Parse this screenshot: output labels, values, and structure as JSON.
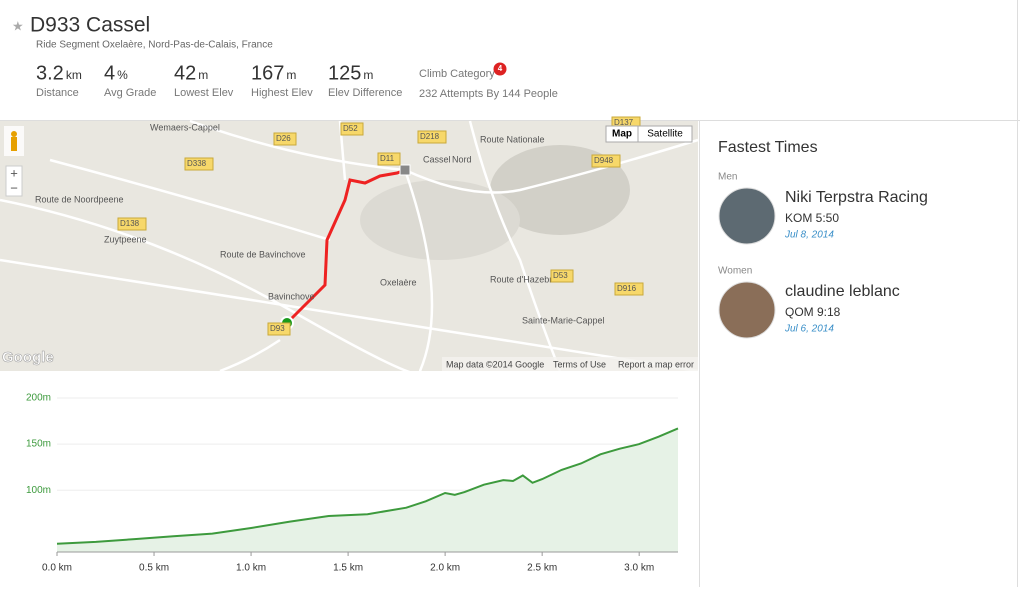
{
  "header": {
    "title": "D933 Cassel",
    "subtitle": "Ride Segment Oxelaère, Nord-Pas-de-Calais, France",
    "stats": [
      {
        "value": "3.2",
        "unit": "km",
        "label": "Distance"
      },
      {
        "value": "4",
        "unit": "%",
        "label": "Avg Grade"
      },
      {
        "value": "42",
        "unit": "m",
        "label": "Lowest Elev"
      },
      {
        "value": "167",
        "unit": "m",
        "label": "Highest Elev"
      },
      {
        "value": "125",
        "unit": "m",
        "label": "Elev Difference"
      }
    ],
    "climb": {
      "label": "Climb Category",
      "badge": "4",
      "attempts": "232 Attempts By 144 People"
    }
  },
  "map": {
    "buttons": [
      "Map",
      "Satellite"
    ],
    "labels": [
      "Wemaers-Cappel",
      "D26",
      "D52",
      "D218",
      "D11",
      "Cassel",
      "Nord",
      "D338",
      "D948",
      "D137",
      "Route Nationale",
      "Route de Noordpeene",
      "D138",
      "Zuytpeene",
      "Route de Bavinchove",
      "Bavinchove",
      "Oxelaère",
      "Route d'Hazebrouck",
      "D53",
      "D916",
      "Sainte-Marie-Cappel",
      "D93"
    ],
    "footer": [
      "Google",
      "Map data ©2014 Google",
      "Terms of Use",
      "Report a map error"
    ]
  },
  "leaderboard": {
    "title": "Fastest Times",
    "groups": [
      {
        "label": "Men",
        "name": "Niki Terpstra Racing",
        "time": "KOM 5:50",
        "date": "Jul 8, 2014"
      },
      {
        "label": "Women",
        "name": "claudine leblanc",
        "time": "QOM 9:18",
        "date": "Jul 6, 2014"
      }
    ]
  },
  "chart_data": {
    "type": "area",
    "color": "#3d9a3d",
    "x": [
      0,
      0.2,
      0.4,
      0.6,
      0.8,
      1.0,
      1.2,
      1.4,
      1.6,
      1.8,
      1.9,
      2.0,
      2.05,
      2.1,
      2.2,
      2.3,
      2.35,
      2.4,
      2.45,
      2.5,
      2.6,
      2.7,
      2.8,
      2.9,
      3.0,
      3.1,
      3.2
    ],
    "values": [
      42,
      44,
      47,
      50,
      53,
      59,
      66,
      72,
      74,
      81,
      88,
      97,
      95,
      98,
      106,
      111,
      110,
      116,
      108,
      112,
      122,
      129,
      139,
      145,
      150,
      158,
      167
    ],
    "xlim": [
      0,
      3.2
    ],
    "ylim": [
      33,
      200
    ],
    "xticks": [
      {
        "value": 0,
        "label": "0.0 km"
      },
      {
        "value": 0.5,
        "label": "0.5 km"
      },
      {
        "value": 1,
        "label": "1.0 km"
      },
      {
        "value": 1.5,
        "label": "1.5 km"
      },
      {
        "value": 2,
        "label": "2.0 km"
      },
      {
        "value": 2.5,
        "label": "2.5 km"
      },
      {
        "value": 3,
        "label": "3.0 km"
      }
    ],
    "yticks": [
      {
        "value": 100,
        "label": "100m"
      },
      {
        "value": 150,
        "label": "150m"
      },
      {
        "value": 200,
        "label": "200m"
      }
    ],
    "grid": true
  }
}
